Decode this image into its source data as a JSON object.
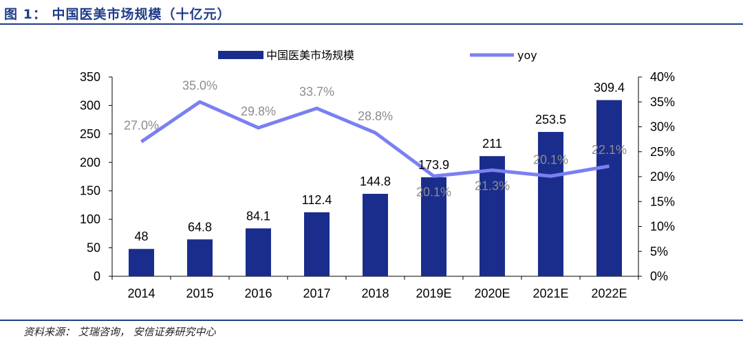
{
  "header": {
    "title": "图 1： 中国医美市场规模（十亿元）"
  },
  "footer": {
    "source": "资料来源： 艾瑞咨询， 安信证券研究中心"
  },
  "colors": {
    "bar": "#1a2d8c",
    "line": "#7a80f2",
    "rule": "#1f3c88",
    "yoy_label": "#8c8c8c"
  },
  "chart_data": {
    "type": "bar",
    "categories": [
      "2014",
      "2015",
      "2016",
      "2017",
      "2018",
      "2019E",
      "2020E",
      "2021E",
      "2022E"
    ],
    "series": [
      {
        "name": "中国医美市场规模",
        "type": "bar",
        "axis": "left",
        "values": [
          48,
          64.8,
          84.1,
          112.4,
          144.8,
          173.9,
          211,
          253.5,
          309.4
        ],
        "labels": [
          "48",
          "64.8",
          "84.1",
          "112.4",
          "144.8",
          "173.9",
          "211",
          "253.5",
          "309.4"
        ]
      },
      {
        "name": "yoy",
        "type": "line",
        "axis": "right",
        "values": [
          27.0,
          35.0,
          29.8,
          33.7,
          28.8,
          20.1,
          21.3,
          20.1,
          22.1
        ],
        "labels": [
          "27.0%",
          "35.0%",
          "29.8%",
          "33.7%",
          "28.8%",
          "20.1%",
          "21.3%",
          "20.1%",
          "22.1%"
        ]
      }
    ],
    "y_left": {
      "min": 0,
      "max": 350,
      "ticks": [
        "0",
        "50",
        "100",
        "150",
        "200",
        "250",
        "300",
        "350"
      ]
    },
    "y_right": {
      "min": 0,
      "max": 40,
      "ticks": [
        "0%",
        "5%",
        "10%",
        "15%",
        "20%",
        "25%",
        "30%",
        "35%",
        "40%"
      ]
    },
    "legend_position": "top",
    "grid": false
  }
}
